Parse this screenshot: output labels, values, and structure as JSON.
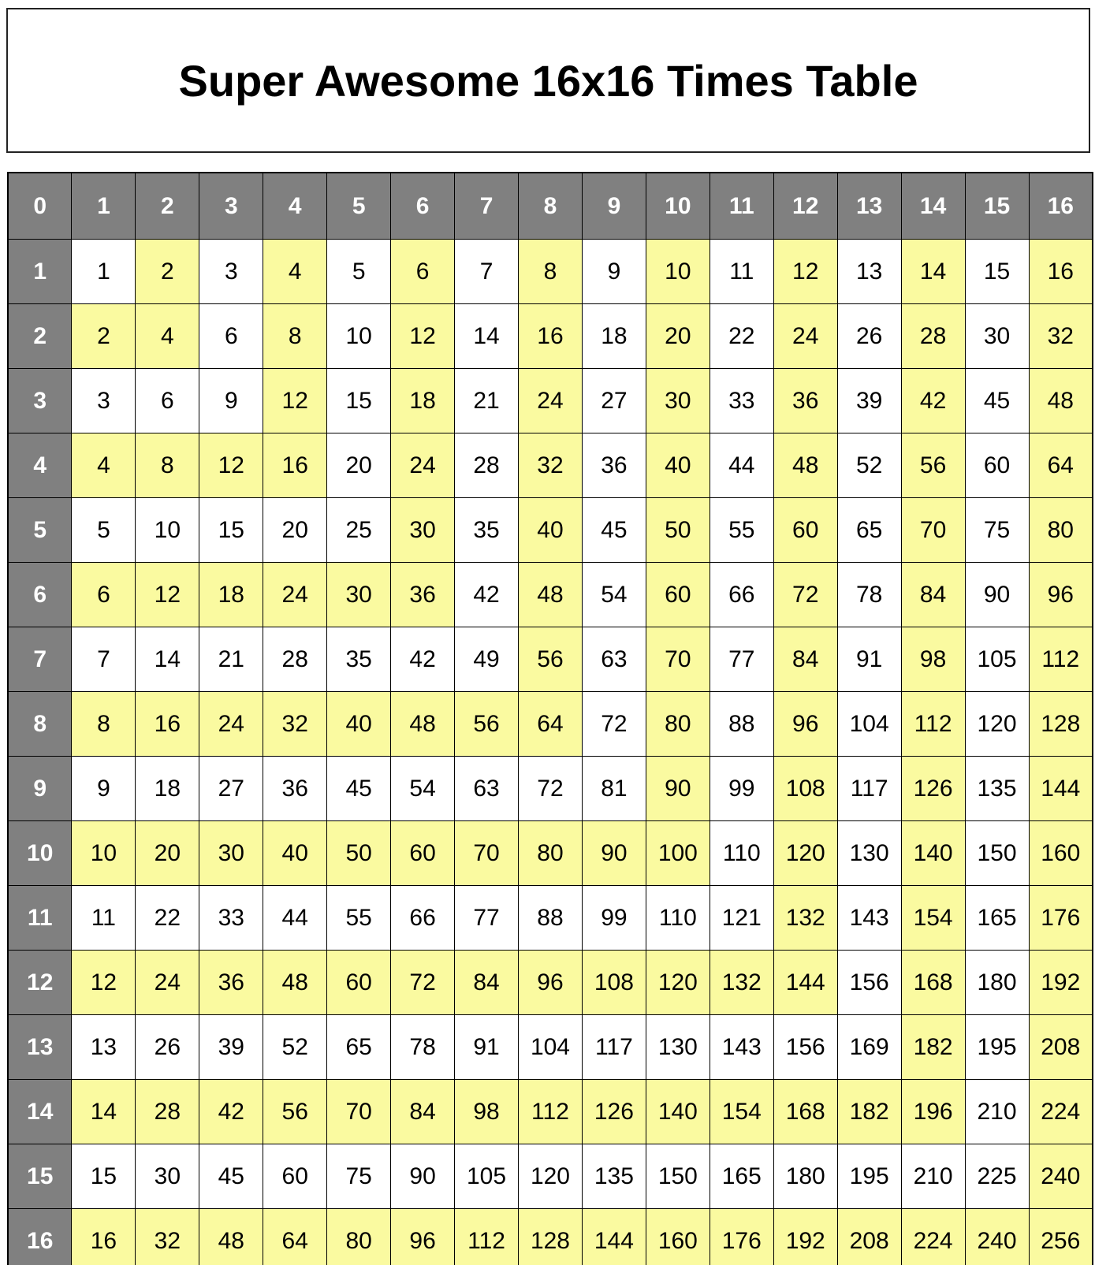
{
  "title": "Super Awesome 16x16 Times Table",
  "table": {
    "corner_label": "0",
    "column_headers": [
      "1",
      "2",
      "3",
      "4",
      "5",
      "6",
      "7",
      "8",
      "9",
      "10",
      "11",
      "12",
      "13",
      "14",
      "15",
      "16"
    ],
    "row_headers": [
      "1",
      "2",
      "3",
      "4",
      "5",
      "6",
      "7",
      "8",
      "9",
      "10",
      "11",
      "12",
      "13",
      "14",
      "15",
      "16"
    ],
    "rows": [
      [
        1,
        2,
        3,
        4,
        5,
        6,
        7,
        8,
        9,
        10,
        11,
        12,
        13,
        14,
        15,
        16
      ],
      [
        2,
        4,
        6,
        8,
        10,
        12,
        14,
        16,
        18,
        20,
        22,
        24,
        26,
        28,
        30,
        32
      ],
      [
        3,
        6,
        9,
        12,
        15,
        18,
        21,
        24,
        27,
        30,
        33,
        36,
        39,
        42,
        45,
        48
      ],
      [
        4,
        8,
        12,
        16,
        20,
        24,
        28,
        32,
        36,
        40,
        44,
        48,
        52,
        56,
        60,
        64
      ],
      [
        5,
        10,
        15,
        20,
        25,
        30,
        35,
        40,
        45,
        50,
        55,
        60,
        65,
        70,
        75,
        80
      ],
      [
        6,
        12,
        18,
        24,
        30,
        36,
        42,
        48,
        54,
        60,
        66,
        72,
        78,
        84,
        90,
        96
      ],
      [
        7,
        14,
        21,
        28,
        35,
        42,
        49,
        56,
        63,
        70,
        77,
        84,
        91,
        98,
        105,
        112
      ],
      [
        8,
        16,
        24,
        32,
        40,
        48,
        56,
        64,
        72,
        80,
        88,
        96,
        104,
        112,
        120,
        128
      ],
      [
        9,
        18,
        27,
        36,
        45,
        54,
        63,
        72,
        81,
        90,
        99,
        108,
        117,
        126,
        135,
        144
      ],
      [
        10,
        20,
        30,
        40,
        50,
        60,
        70,
        80,
        90,
        100,
        110,
        120,
        130,
        140,
        150,
        160
      ],
      [
        11,
        22,
        33,
        44,
        55,
        66,
        77,
        88,
        99,
        110,
        121,
        132,
        143,
        154,
        165,
        176
      ],
      [
        12,
        24,
        36,
        48,
        60,
        72,
        84,
        96,
        108,
        120,
        132,
        144,
        156,
        168,
        180,
        192
      ],
      [
        13,
        26,
        39,
        52,
        65,
        78,
        91,
        104,
        117,
        130,
        143,
        156,
        169,
        182,
        195,
        208
      ],
      [
        14,
        28,
        42,
        56,
        70,
        84,
        98,
        112,
        126,
        140,
        154,
        168,
        182,
        196,
        210,
        224
      ],
      [
        15,
        30,
        45,
        60,
        75,
        90,
        105,
        120,
        135,
        150,
        165,
        180,
        195,
        210,
        225,
        240
      ],
      [
        16,
        32,
        48,
        64,
        80,
        96,
        112,
        128,
        144,
        160,
        176,
        192,
        208,
        224,
        240,
        256
      ]
    ],
    "highlights": [
      [
        0,
        1,
        0,
        1,
        0,
        1,
        0,
        1,
        0,
        1,
        0,
        1,
        0,
        1,
        0,
        1
      ],
      [
        1,
        1,
        0,
        1,
        0,
        1,
        0,
        1,
        0,
        1,
        0,
        1,
        0,
        1,
        0,
        1
      ],
      [
        0,
        0,
        0,
        1,
        0,
        1,
        0,
        1,
        0,
        1,
        0,
        1,
        0,
        1,
        0,
        1
      ],
      [
        1,
        1,
        1,
        1,
        0,
        1,
        0,
        1,
        0,
        1,
        0,
        1,
        0,
        1,
        0,
        1
      ],
      [
        0,
        0,
        0,
        0,
        0,
        1,
        0,
        1,
        0,
        1,
        0,
        1,
        0,
        1,
        0,
        1
      ],
      [
        1,
        1,
        1,
        1,
        1,
        1,
        0,
        1,
        0,
        1,
        0,
        1,
        0,
        1,
        0,
        1
      ],
      [
        0,
        0,
        0,
        0,
        0,
        0,
        0,
        1,
        0,
        1,
        0,
        1,
        0,
        1,
        0,
        1
      ],
      [
        1,
        1,
        1,
        1,
        1,
        1,
        1,
        1,
        0,
        1,
        0,
        1,
        0,
        1,
        0,
        1
      ],
      [
        0,
        0,
        0,
        0,
        0,
        0,
        0,
        0,
        0,
        1,
        0,
        1,
        0,
        1,
        0,
        1
      ],
      [
        1,
        1,
        1,
        1,
        1,
        1,
        1,
        1,
        1,
        1,
        0,
        1,
        0,
        1,
        0,
        1
      ],
      [
        0,
        0,
        0,
        0,
        0,
        0,
        0,
        0,
        0,
        0,
        0,
        1,
        0,
        1,
        0,
        1
      ],
      [
        1,
        1,
        1,
        1,
        1,
        1,
        1,
        1,
        1,
        1,
        1,
        1,
        0,
        1,
        0,
        1
      ],
      [
        0,
        0,
        0,
        0,
        0,
        0,
        0,
        0,
        0,
        0,
        0,
        0,
        0,
        1,
        0,
        1
      ],
      [
        1,
        1,
        1,
        1,
        1,
        1,
        1,
        1,
        1,
        1,
        1,
        1,
        1,
        1,
        0,
        1
      ],
      [
        0,
        0,
        0,
        0,
        0,
        0,
        0,
        0,
        0,
        0,
        0,
        0,
        0,
        0,
        0,
        1
      ],
      [
        1,
        1,
        1,
        1,
        1,
        1,
        1,
        1,
        1,
        1,
        1,
        1,
        1,
        1,
        1,
        1
      ]
    ],
    "highlight_rule": "cell shaded when max(row, column) is even"
  },
  "colors": {
    "header_bg": "#808080",
    "header_text": "#ffffff",
    "highlight_bg": "#fafaa0",
    "cell_bg": "#ffffff",
    "cell_text": "#000000",
    "grid_border": "#000000",
    "title_text": "#000000",
    "title_border": "#222222"
  }
}
